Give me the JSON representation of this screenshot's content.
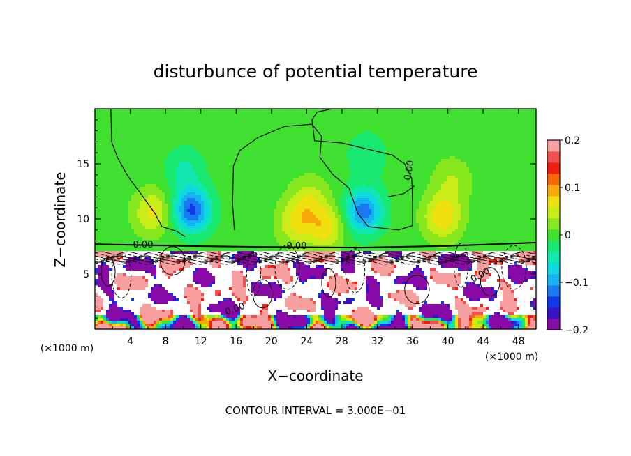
{
  "chart_data": {
    "type": "heatmap",
    "title": "disturbunce of potential temperature",
    "xlabel": "X−coordinate",
    "ylabel": "Z−coordinate",
    "x_unit_left": "(×1000 m)",
    "x_unit_right": "(×1000 m)",
    "xlim": [
      0,
      50
    ],
    "ylim": [
      0,
      20
    ],
    "x_ticks": [
      4,
      8,
      12,
      16,
      20,
      24,
      28,
      32,
      36,
      40,
      44,
      48
    ],
    "y_ticks": [
      5,
      10,
      15
    ],
    "colorbar": {
      "range": [
        -0.2,
        0.2
      ],
      "ticks": [
        {
          "value": 0.2,
          "label": "0.2"
        },
        {
          "value": 0.1,
          "label": "0.1"
        },
        {
          "value": 0,
          "label": "0"
        },
        {
          "value": -0.1,
          "label": "−0.1"
        },
        {
          "value": -0.2,
          "label": "−0.2"
        }
      ],
      "colors": [
        "#8a0aa8",
        "#3a10c8",
        "#1038e8",
        "#1a78f0",
        "#14b4f0",
        "#10d8e0",
        "#10e8b0",
        "#18e870",
        "#40e030",
        "#88e820",
        "#c8ec18",
        "#f0e010",
        "#f8a808",
        "#f86808",
        "#f02010",
        "#f05050",
        "#f8a0a0"
      ]
    },
    "contour_labels": [
      "0.00",
      "0.00",
      "0.00",
      "0.00",
      "0.00"
    ],
    "contour_interval_text": "CONTOUR INTERVAL = 3.000E−01",
    "background_value": 0,
    "warm_anomalies": [
      {
        "x": 6.5,
        "z": 10.6,
        "amp": 0.065
      },
      {
        "x": 22.8,
        "z": 9.6,
        "amp": 0.06
      },
      {
        "x": 26.2,
        "z": 9.2,
        "amp": 0.07
      },
      {
        "x": 24.3,
        "z": 11.7,
        "amp": 0.05
      },
      {
        "x": 39.4,
        "z": 10.2,
        "amp": 0.08
      },
      {
        "x": 40.5,
        "z": 13.5,
        "amp": 0.035
      }
    ],
    "cold_anomalies": [
      {
        "x": 11.0,
        "z": 10.8,
        "amp": -0.135
      },
      {
        "x": 30.5,
        "z": 10.7,
        "amp": -0.12
      },
      {
        "x": 10.2,
        "z": 14.5,
        "amp": -0.04
      },
      {
        "x": 30.8,
        "z": 15.8,
        "amp": -0.035
      }
    ],
    "strong_layer_top_z": 7.2,
    "strong_layer_values": [
      "saturated",
      "-0.2 to 0.2+"
    ]
  }
}
